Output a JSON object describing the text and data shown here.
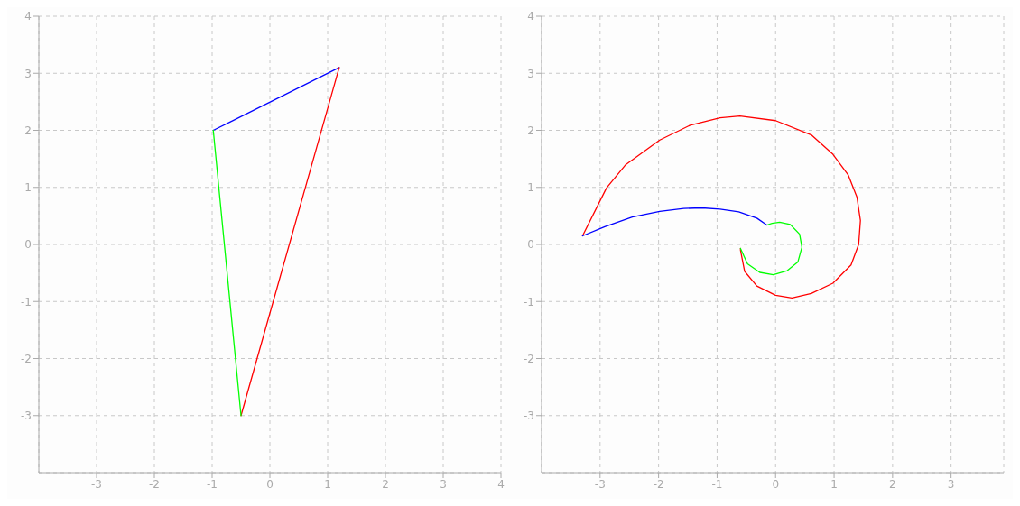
{
  "chart_data": [
    {
      "type": "line",
      "xlim": [
        -4,
        4
      ],
      "ylim": [
        -4,
        4
      ],
      "xticks": [
        -3,
        -2,
        -1,
        0,
        1,
        2,
        3,
        4
      ],
      "yticks": [
        -3,
        -2,
        -1,
        0,
        1,
        2,
        3,
        4
      ],
      "grid": true,
      "marker": "none",
      "line_style": "solid",
      "series": [
        {
          "color": "#0000ff",
          "x": [
            -0.98,
            1.2
          ],
          "values": [
            2.0,
            3.1
          ]
        },
        {
          "color": "#ff0000",
          "x": [
            1.2,
            -0.5
          ],
          "values": [
            3.1,
            -3.0
          ]
        },
        {
          "color": "#00ff00",
          "x": [
            -0.98,
            -0.5
          ],
          "values": [
            2.0,
            -3.0
          ]
        }
      ]
    },
    {
      "type": "line",
      "xlim": [
        -4,
        3.9
      ],
      "ylim": [
        -4,
        4
      ],
      "xticks": [
        -3,
        -2,
        -1,
        0,
        1,
        2,
        3
      ],
      "yticks": [
        -3,
        -2,
        -1,
        0,
        1,
        2,
        3,
        4
      ],
      "grid": true,
      "marker": "none",
      "line_style": "solid",
      "series": [
        {
          "color": "#ff0000",
          "x": [
            -3.3,
            -2.89,
            -2.56,
            -1.98,
            -1.46,
            -0.95,
            -0.61,
            0,
            0.61,
            0.98,
            1.24,
            1.39,
            1.45,
            1.42,
            1.29,
            0.98,
            0.61,
            0.28,
            0,
            -0.32,
            -0.53,
            -0.6,
            -0.6
          ],
          "values": [
            0.15,
            0.99,
            1.4,
            1.83,
            2.09,
            2.22,
            2.25,
            2.17,
            1.92,
            1.58,
            1.22,
            0.83,
            0.42,
            0,
            -0.36,
            -0.68,
            -0.86,
            -0.94,
            -0.89,
            -0.73,
            -0.47,
            -0.1,
            -0.07
          ]
        },
        {
          "color": "#00ff00",
          "x": [
            -0.6,
            -0.48,
            -0.27,
            -0.04,
            0.2,
            0.38,
            0.45,
            0.41,
            0.25,
            0.07,
            -0.06,
            -0.15
          ],
          "values": [
            -0.07,
            -0.34,
            -0.49,
            -0.53,
            -0.46,
            -0.31,
            -0.05,
            0.18,
            0.35,
            0.39,
            0.37,
            0.34
          ]
        },
        {
          "color": "#0000ff",
          "x": [
            -0.15,
            -0.32,
            -0.63,
            -0.95,
            -1.26,
            -1.57,
            -1.98,
            -2.45,
            -2.92,
            -3.3
          ],
          "values": [
            0.34,
            0.46,
            0.57,
            0.62,
            0.64,
            0.63,
            0.58,
            0.48,
            0.31,
            0.15
          ]
        }
      ]
    }
  ]
}
